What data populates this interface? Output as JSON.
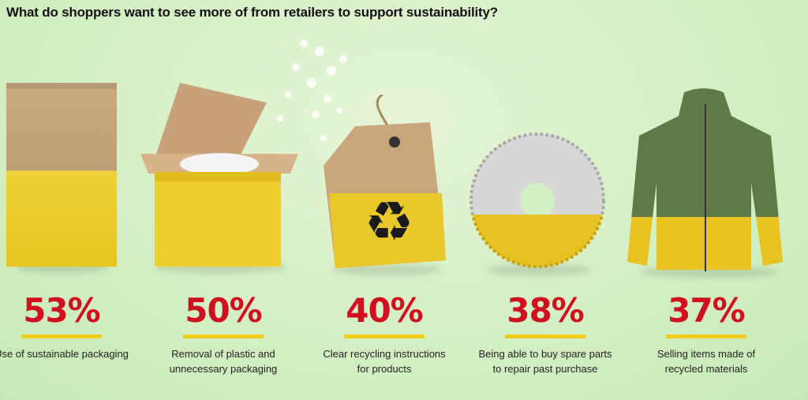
{
  "title": "What do shoppers want to see more of from retailers to support sustainability?",
  "colors": {
    "percent": "#d0101e",
    "accent_yellow": "#f2cc1c",
    "background": "#d3efc4"
  },
  "chart_data": {
    "type": "bar",
    "title": "What do shoppers want to see more of from retailers to support sustainability?",
    "categories": [
      "Use of sustainable packaging",
      "Removal of plastic and unnecessary packaging",
      "Clear recycling instructions for products",
      "Being able to buy spare parts to repair past purchase",
      "Selling items made of recycled materials"
    ],
    "values": [
      53,
      50,
      40,
      38,
      37
    ],
    "unit": "%"
  },
  "items": [
    {
      "percent": "53%",
      "label": "Use of sustainable packaging",
      "icon": "kraft-pouch-icon"
    },
    {
      "percent": "50%",
      "label": "Removal of plastic and unnecessary packaging",
      "icon": "cardboard-box-icon"
    },
    {
      "percent": "40%",
      "label": "Clear recycling instructions for products",
      "icon": "recycling-tag-icon"
    },
    {
      "percent": "38%",
      "label": "Being able to buy spare parts to repair past purchase",
      "icon": "bike-cassette-gear-icon"
    },
    {
      "percent": "37%",
      "label": "Selling items made of recycled materials",
      "icon": "rain-jacket-icon"
    }
  ]
}
